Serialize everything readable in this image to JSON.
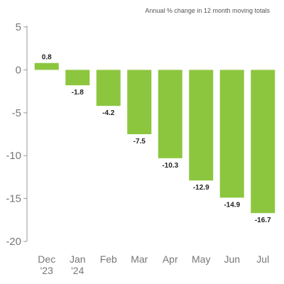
{
  "chart_data": {
    "type": "bar",
    "title": "",
    "subtitle": "Annual % change in 12 month moving totals",
    "xlabel": "",
    "ylabel": "",
    "categories": [
      [
        "Dec",
        "'23"
      ],
      [
        "Jan",
        "'24"
      ],
      [
        "Feb"
      ],
      [
        "Mar"
      ],
      [
        "Apr"
      ],
      [
        "May"
      ],
      [
        "Jun"
      ],
      [
        "Jul"
      ]
    ],
    "values": [
      0.8,
      -1.8,
      -4.2,
      -7.5,
      -10.3,
      -12.9,
      -14.9,
      -16.7
    ],
    "value_labels": [
      "0.8",
      "-1.8",
      "-4.2",
      "-7.5",
      "-10.3",
      "-12.9",
      "-14.9",
      "-16.7"
    ],
    "ylim": [
      -20,
      5
    ],
    "yticks": [
      5,
      0,
      -5,
      -10,
      -15,
      -20
    ],
    "ytick_labels": [
      "5",
      "0",
      "-5",
      "-10",
      "-15",
      "-20"
    ],
    "grid": false,
    "legend": "none",
    "colors": {
      "bar": "#8cc63f",
      "axis": "#999999",
      "tick_text": "#777777",
      "label_text": "#222222"
    }
  }
}
